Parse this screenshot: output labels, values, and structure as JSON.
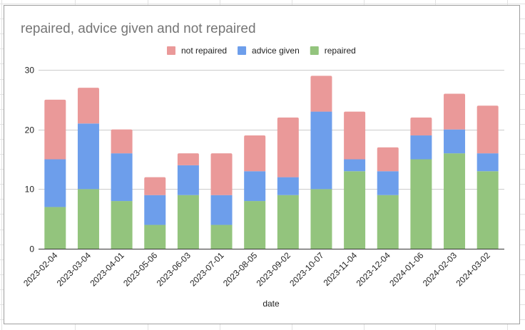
{
  "chart_data": {
    "type": "bar",
    "stacked": true,
    "title": "repaired, advice given and not repaired",
    "xlabel": "date",
    "ylabel": "",
    "ylim": [
      0,
      30
    ],
    "yticks": [
      "0",
      "10",
      "20",
      "30"
    ],
    "grid": true,
    "legend_position": "top",
    "categories": [
      "2023-02-04",
      "2023-03-04",
      "2023-04-01",
      "2023-05-06",
      "2023-06-03",
      "2023-07-01",
      "2023-08-05",
      "2023-09-02",
      "2023-10-07",
      "2023-11-04",
      "2023-12-04",
      "2024-01-06",
      "2024-02-03",
      "2024-03-02"
    ],
    "series": [
      {
        "name": "repaired",
        "color": "#93c47d",
        "values": [
          7,
          10,
          8,
          4,
          9,
          4,
          8,
          9,
          10,
          13,
          9,
          15,
          16,
          13
        ]
      },
      {
        "name": "advice given",
        "color": "#6d9eeb",
        "values": [
          8,
          11,
          8,
          5,
          5,
          5,
          5,
          3,
          13,
          2,
          4,
          4,
          4,
          3
        ]
      },
      {
        "name": "not repaired",
        "color": "#ea9999",
        "values": [
          10,
          6,
          4,
          3,
          2,
          7,
          6,
          10,
          6,
          8,
          4,
          3,
          6,
          8
        ]
      }
    ],
    "legend": [
      {
        "name": "not repaired",
        "color": "#ea9999"
      },
      {
        "name": "advice given",
        "color": "#6d9eeb"
      },
      {
        "name": "repaired",
        "color": "#93c47d"
      }
    ]
  }
}
